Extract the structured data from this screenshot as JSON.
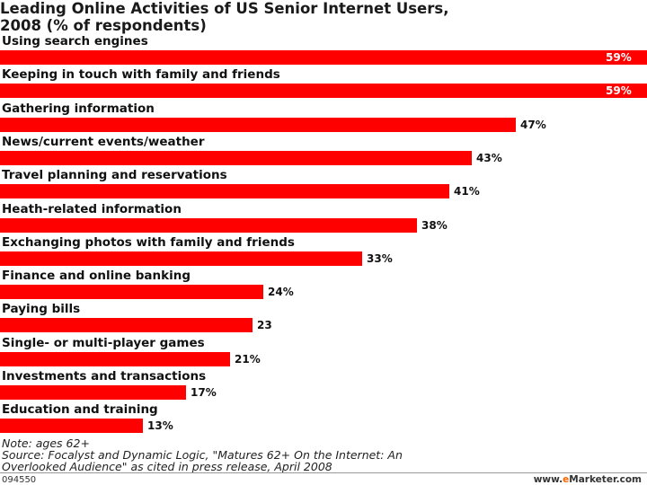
{
  "chart_data": {
    "type": "bar",
    "orientation": "horizontal",
    "title": "Leading Online Activities of US Senior Internet Users,\n2008 (% of respondents)",
    "categories": [
      "Using search engines",
      "Keeping in touch with family and friends",
      "Gathering information",
      "News/current events/weather",
      "Travel planning and reservations",
      "Heath-related information",
      "Exchanging photos with family and friends",
      "Finance and online banking",
      "Paying bills",
      "Single- or multi-player games",
      "Investments and transactions",
      "Education and training"
    ],
    "values": [
      59,
      59,
      47,
      43,
      41,
      38,
      33,
      24,
      23,
      21,
      17,
      13
    ],
    "value_labels": [
      "59%",
      "59%",
      "47%",
      "43%",
      "41%",
      "38%",
      "33%",
      "24%",
      "23",
      "21%",
      "17%",
      "13%"
    ],
    "xlim": [
      0,
      59
    ],
    "bar_color": "#ff0000",
    "grid": false,
    "legend": "none"
  },
  "notes": {
    "note": "Note: ages 62+",
    "source_line1": "Source: Focalyst and Dynamic Logic, \"Matures 62+ On the Internet: An",
    "source_line2": "Overlooked Audience\" as cited in press release, April 2008"
  },
  "footer": {
    "id": "094550",
    "brand_prefix": "www.",
    "brand_accent": "e",
    "brand_suffix": "Marketer.com"
  }
}
